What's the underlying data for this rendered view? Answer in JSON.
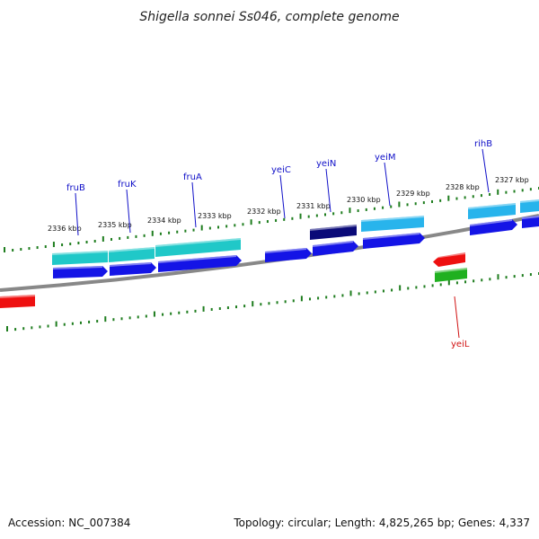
{
  "title": "Shigella sonnei Ss046, complete genome",
  "colors": {
    "backbone": "#888888",
    "tick": "#1e7d1e",
    "label_blue": "#1010c8",
    "label_red": "#d01010",
    "cyan": "#20c8c8",
    "sky": "#28b4ec",
    "blue": "#1414e6",
    "navy": "#0a0a78",
    "red": "#ee1010",
    "green": "#20b020"
  },
  "kbp_labels": [
    "2336 kbp",
    "2335 kbp",
    "2334 kbp",
    "2333 kbp",
    "2332 kbp",
    "2331 kbp",
    "2330 kbp",
    "2329 kbp",
    "2328 kbp",
    "2327 kbp"
  ],
  "genes": [
    {
      "name": "fruB",
      "color": "blue"
    },
    {
      "name": "fruK",
      "color": "blue"
    },
    {
      "name": "fruA",
      "color": "blue"
    },
    {
      "name": "yeiC",
      "color": "blue"
    },
    {
      "name": "yeiN",
      "color": "blue"
    },
    {
      "name": "yeiM",
      "color": "blue"
    },
    {
      "name": "rihB",
      "color": "blue"
    },
    {
      "name": "yeiL",
      "color": "red"
    }
  ],
  "footer": {
    "accession": "Accession: NC_007384",
    "topology": "Topology: circular; Length: 4,825,265 bp; Genes: 4,337"
  }
}
